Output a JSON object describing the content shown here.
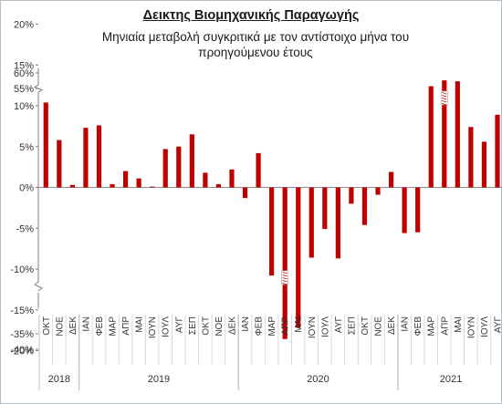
{
  "chart_data": {
    "type": "bar",
    "title": "Δεικτης Βιομηχανικής Παραγωγής",
    "subtitle": "Μηνιαία μεταβολή συγκριτικά με τον αντίστοιχο μήνα του προηγούμενου έτους",
    "bar_color": "#c00000",
    "grid": false,
    "legend": "none",
    "y_axis": {
      "broken": true,
      "ylim": [
        -40,
        60
      ],
      "tick_labels": [
        "60%",
        "55%",
        "20%",
        "15%",
        "10%",
        "5%",
        "0%",
        "-5%",
        "-10%",
        "-15%",
        "-20%",
        "-35%",
        "-40%"
      ]
    },
    "x_axis": {
      "years": [
        {
          "label": "2018",
          "months": [
            "ΟΚΤ",
            "ΝΟΕ",
            "ΔΕΚ"
          ]
        },
        {
          "label": "2019",
          "months": [
            "ΙΑΝ",
            "ΦΕΒ",
            "ΜΑΡ",
            "ΑΠΡ",
            "ΜΑΙ",
            "ΙΟΥΝ",
            "ΙΟΥΛ",
            "ΑΥΓ",
            "ΣΕΠ",
            "ΟΚΤ",
            "ΝΟΕ",
            "ΔΕΚ"
          ]
        },
        {
          "label": "2020",
          "months": [
            "ΙΑΝ",
            "ΦΕΒ",
            "ΜΑΡ",
            "ΑΠΡ",
            "ΜΑΙ",
            "ΙΟΥΝ",
            "ΙΟΥΛ",
            "ΑΥΓ",
            "ΣΕΠ",
            "ΟΚΤ",
            "ΝΟΕ",
            "ΔΕΚ"
          ]
        },
        {
          "label": "2021",
          "months": [
            "ΙΑΝ",
            "ΦΕΒ",
            "ΜΑΡ",
            "ΑΠΡ",
            "ΜΑΙ",
            "ΙΟΥΝ",
            "ΙΟΥΛ",
            "ΑΥΓ"
          ]
        }
      ]
    },
    "values": [
      10.4,
      5.8,
      0.3,
      7.3,
      7.6,
      0.4,
      2.0,
      1.1,
      0.1,
      4.7,
      5.0,
      6.5,
      1.8,
      0.4,
      2.2,
      -1.3,
      4.2,
      -10.8,
      -36.7,
      -17.2,
      -8.6,
      -5.1,
      -8.7,
      -2.0,
      -4.6,
      -0.9,
      1.9,
      -5.6,
      -5.5,
      12.4,
      57.6,
      13.0,
      7.4,
      5.6,
      8.9
    ]
  }
}
